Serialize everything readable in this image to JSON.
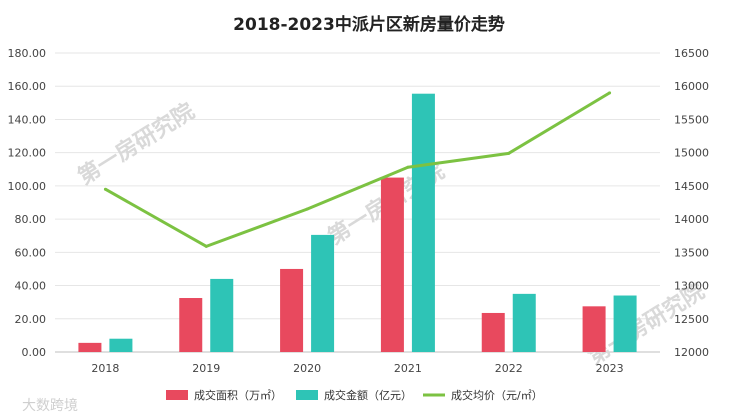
{
  "chart_data": {
    "type": "bar",
    "title": "2018-2023中派片区新房量价走势",
    "categories": [
      "2018",
      "2019",
      "2020",
      "2021",
      "2022",
      "2023"
    ],
    "y_left": {
      "ylim": [
        0,
        180
      ],
      "ticks": [
        "0.00",
        "20.00",
        "40.00",
        "60.00",
        "80.00",
        "100.00",
        "120.00",
        "140.00",
        "160.00",
        "180.00"
      ]
    },
    "y_right": {
      "ylim": [
        12000,
        16500
      ],
      "ticks": [
        "12000",
        "12500",
        "13000",
        "13500",
        "14000",
        "14500",
        "15000",
        "15500",
        "16000",
        "16500"
      ]
    },
    "series": [
      {
        "name": "成交面积（万㎡）",
        "type": "bar",
        "axis": "left",
        "color": "#e8495e",
        "values": [
          5.5,
          32.5,
          50,
          105,
          23.5,
          27.5
        ]
      },
      {
        "name": "成交金额（亿元）",
        "type": "bar",
        "axis": "left",
        "color": "#2ec4b6",
        "values": [
          8,
          44,
          70.5,
          155.5,
          35,
          34
        ]
      },
      {
        "name": "成交均价（元/㎡）",
        "type": "line",
        "axis": "right",
        "color": "#7cc242",
        "values": [
          14450,
          13590,
          14150,
          14780,
          14990,
          15900
        ]
      }
    ],
    "grid": true,
    "legend_position": "bottom"
  },
  "watermark": {
    "text": "第一房研究院"
  },
  "bottom_watermark": {
    "text": "大数跨境"
  }
}
